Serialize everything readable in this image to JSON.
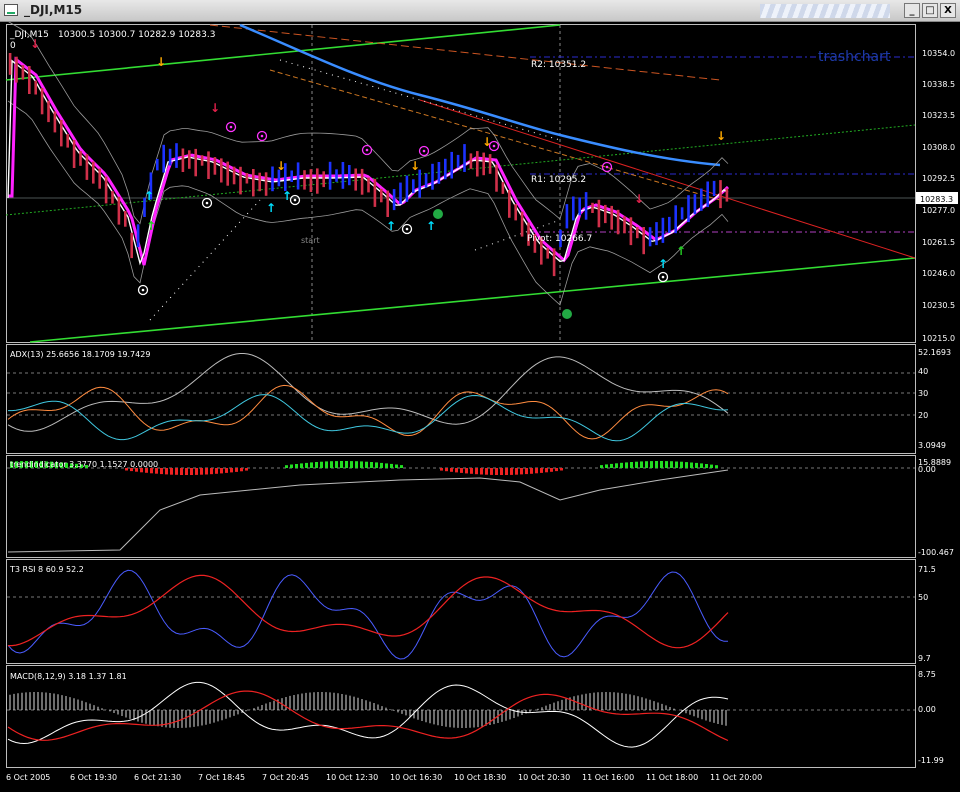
{
  "window": {
    "title": "_DJI,M15",
    "icon": "chart-window-icon",
    "buttons": [
      "_",
      "□",
      "X"
    ]
  },
  "colors": {
    "background": "#000000",
    "axis": "#c0c0c0",
    "bull": "#1c32ff",
    "bear": "#d0304a",
    "ma_magenta": "#ff22ff",
    "ma_white": "#ffffff",
    "channel": "#33dd33",
    "trendline": "#dd2222",
    "ma_blue": "#3a8dff",
    "bands": "#9a9a9a"
  },
  "main_chart": {
    "symbol_label": "_DJI,M15",
    "ohlc": "10300.5 10300.7 10282.9 10283.3",
    "top_marker": "0",
    "watermark": "trashchart",
    "current_price": "10283.3",
    "price_ticks": [
      "10354.0",
      "10338.5",
      "10323.5",
      "10308.0",
      "10292.5",
      "10277.0",
      "10261.5",
      "10246.0",
      "10230.5",
      "10215.0"
    ],
    "levels": {
      "r2": "R2: 10351.2",
      "r1": "R1: 10295.2",
      "pivot": "Pivot: 10266.7",
      "start": "start"
    }
  },
  "adx": {
    "label": "ADX(13) 25.6656 18.1709 19.7429",
    "ticks": [
      "52.1693",
      "40",
      "30",
      "20",
      "3.0949"
    ]
  },
  "trend_indicator": {
    "label": "trendindicator 3.3770 1.1527 0.0000",
    "ticks": [
      "15.8889",
      "0.00",
      "-100.467"
    ]
  },
  "rsi": {
    "label": "T3 RSI 8 60.9 52.2",
    "ticks": [
      "71.5",
      "50",
      "9.7"
    ]
  },
  "macd": {
    "label": "MACD(8,12,9) 3.18 1.37 1.81",
    "ticks": [
      "8.75",
      "0.00",
      "-11.99"
    ]
  },
  "time_axis": [
    "6 Oct 2005",
    "6 Oct 19:30",
    "6 Oct 21:30",
    "7 Oct 18:45",
    "7 Oct 20:45",
    "10 Oct 12:30",
    "10 Oct 16:30",
    "10 Oct 18:30",
    "10 Oct 20:30",
    "11 Oct 16:00",
    "11 Oct 18:00",
    "11 Oct 20:00"
  ]
}
